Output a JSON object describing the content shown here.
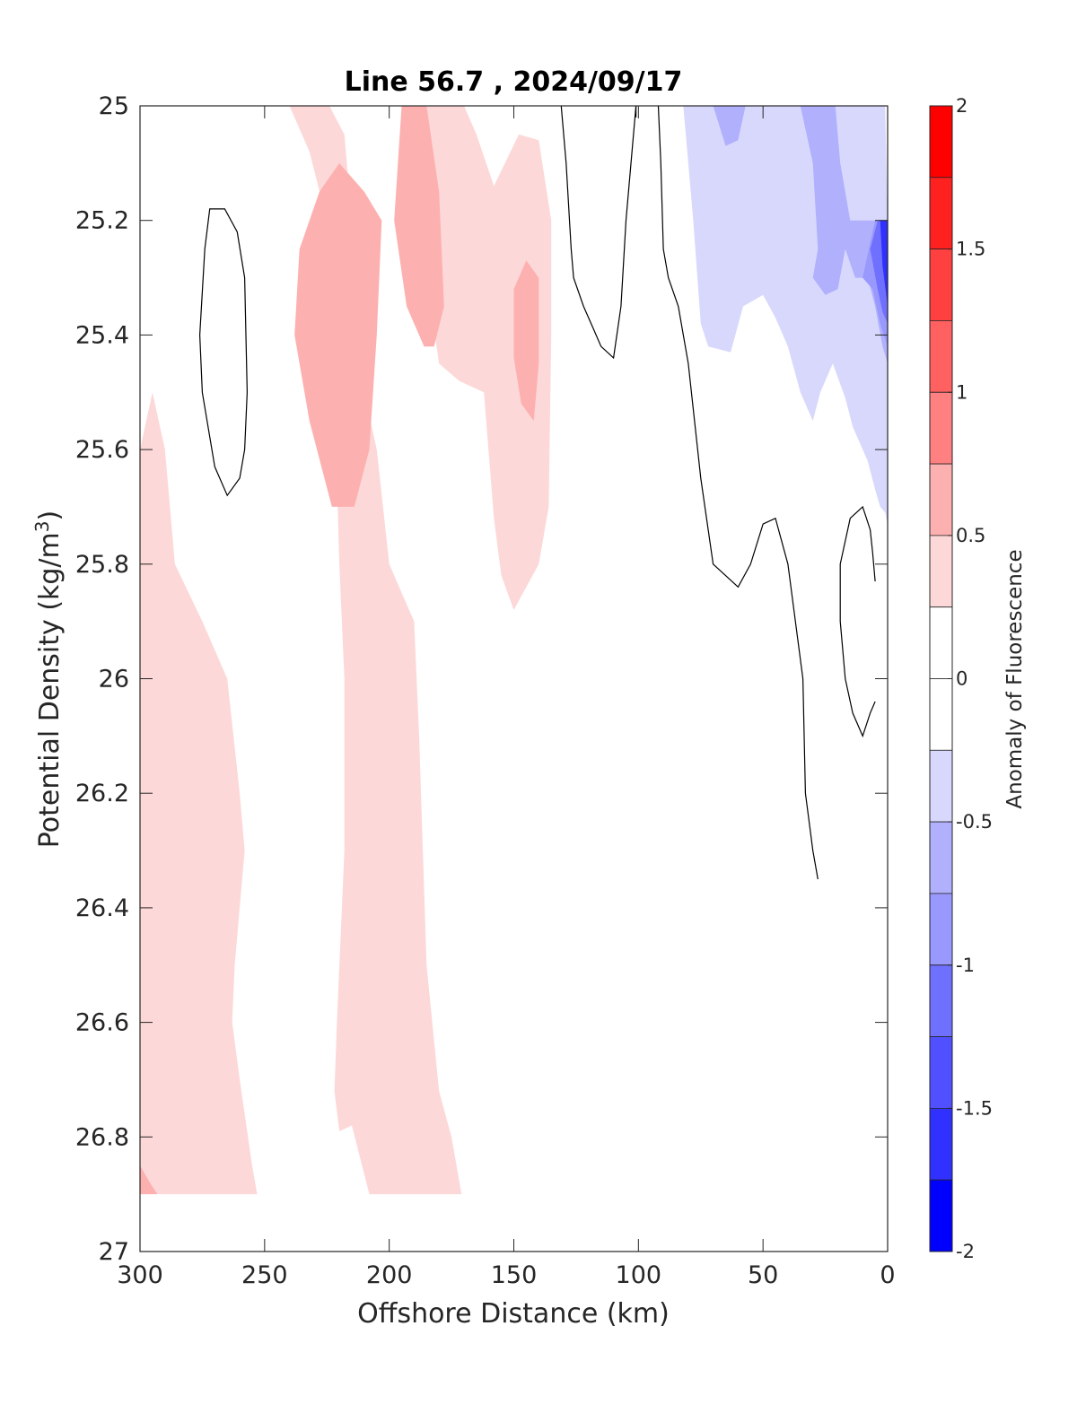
{
  "chart_data": {
    "type": "contour",
    "title": "Line 56.7 , 2024/09/17",
    "xlabel": "Offshore Distance (km)",
    "ylabel_main": "Potential Density (kg/m",
    "ylabel_sup": "3",
    "ylabel_close": ")",
    "colorbar_label": "Anomaly of Fluorescence",
    "x_axis": {
      "min": 0,
      "max": 300,
      "reversed": true,
      "ticks": [
        300,
        250,
        200,
        150,
        100,
        50,
        0
      ],
      "tick_labels": [
        "300",
        "250",
        "200",
        "150",
        "100",
        "50",
        "0"
      ]
    },
    "y_axis": {
      "min": 25,
      "max": 27,
      "reversed": true,
      "ticks": [
        25,
        25.2,
        25.4,
        25.6,
        25.8,
        26,
        26.2,
        26.4,
        26.6,
        26.8,
        27
      ],
      "tick_labels": [
        "25",
        "25.2",
        "25.4",
        "25.6",
        "25.8",
        "26",
        "26.2",
        "26.4",
        "26.6",
        "26.8",
        "27"
      ]
    },
    "colorbar": {
      "min": -2,
      "max": 2,
      "ticks": [
        2,
        1.5,
        1,
        0.5,
        0,
        -0.5,
        -1,
        -1.5,
        -2
      ],
      "tick_labels": [
        "2",
        "1.5",
        "1",
        "0.5",
        "0",
        "-0.5",
        "-1",
        "-1.5",
        "-2"
      ],
      "levels": [
        {
          "from": 1.75,
          "to": 2.0,
          "color": "#ff0000"
        },
        {
          "from": 1.5,
          "to": 1.75,
          "color": "#ff2020"
        },
        {
          "from": 1.25,
          "to": 1.5,
          "color": "#ff4040"
        },
        {
          "from": 1.0,
          "to": 1.25,
          "color": "#ff6060"
        },
        {
          "from": 0.75,
          "to": 1.0,
          "color": "#ff8080"
        },
        {
          "from": 0.5,
          "to": 0.75,
          "color": "#fdb0b0"
        },
        {
          "from": 0.25,
          "to": 0.5,
          "color": "#fdd8d8"
        },
        {
          "from": 0.0,
          "to": 0.25,
          "color": "#ffffff"
        },
        {
          "from": -0.25,
          "to": 0.0,
          "color": "#ffffff"
        },
        {
          "from": -0.5,
          "to": -0.25,
          "color": "#d8d8fd"
        },
        {
          "from": -0.75,
          "to": -0.5,
          "color": "#b0b0fd"
        },
        {
          "from": -1.0,
          "to": -0.75,
          "color": "#9898fd"
        },
        {
          "from": -1.25,
          "to": -1.0,
          "color": "#7070ff"
        },
        {
          "from": -1.5,
          "to": -1.25,
          "color": "#5050ff"
        },
        {
          "from": -1.75,
          "to": -1.5,
          "color": "#3030ff"
        },
        {
          "from": -2.0,
          "to": -1.75,
          "color": "#0000ff"
        }
      ]
    },
    "filled_regions": [
      {
        "level": 0.25,
        "color": "#fdd8d8",
        "name": "left-band",
        "points": [
          [
            300,
            26.9
          ],
          [
            300,
            25.6
          ],
          [
            295,
            25.5
          ],
          [
            290,
            25.6
          ],
          [
            286,
            25.8
          ],
          [
            275,
            25.9
          ],
          [
            265,
            26.0
          ],
          [
            260,
            26.2
          ],
          [
            258,
            26.3
          ],
          [
            262,
            26.5
          ],
          [
            263,
            26.6
          ],
          [
            260,
            26.7
          ],
          [
            255,
            26.85
          ],
          [
            253,
            26.9
          ]
        ]
      },
      {
        "level": 0.25,
        "color": "#fdd8d8",
        "name": "central-band",
        "points": [
          [
            250,
            25.0
          ],
          [
            240,
            25.0
          ],
          [
            232,
            25.08
          ],
          [
            225,
            25.2
          ],
          [
            222,
            25.5
          ],
          [
            220,
            25.8
          ],
          [
            218,
            26.0
          ],
          [
            218,
            26.3
          ],
          [
            221,
            26.6
          ],
          [
            222,
            26.72
          ],
          [
            220,
            26.79
          ],
          [
            215,
            26.78
          ],
          [
            208,
            26.9
          ],
          [
            171,
            26.9
          ],
          [
            175,
            26.8
          ],
          [
            180,
            26.72
          ],
          [
            185,
            26.5
          ],
          [
            188,
            26.1
          ],
          [
            190,
            25.9
          ],
          [
            195,
            25.85
          ],
          [
            200,
            25.8
          ],
          [
            205,
            25.6
          ],
          [
            210,
            25.5
          ],
          [
            213,
            25.3
          ],
          [
            218,
            25.05
          ],
          [
            224,
            25.0
          ]
        ]
      },
      {
        "level": 0.25,
        "color": "#fdd8d8",
        "name": "top-center",
        "points": [
          [
            190,
            25.0
          ],
          [
            170,
            25.0
          ],
          [
            165,
            25.05
          ],
          [
            158,
            25.14
          ],
          [
            148,
            25.05
          ],
          [
            140,
            25.06
          ],
          [
            135,
            25.2
          ],
          [
            135,
            25.4
          ],
          [
            136,
            25.7
          ],
          [
            140,
            25.8
          ],
          [
            150,
            25.88
          ],
          [
            155,
            25.82
          ],
          [
            158,
            25.72
          ],
          [
            162,
            25.5
          ],
          [
            172,
            25.48
          ],
          [
            180,
            25.45
          ],
          [
            185,
            25.3
          ],
          [
            188,
            25.1
          ]
        ]
      },
      {
        "level": 0.5,
        "color": "#fdb0b0",
        "name": "core-a",
        "points": [
          [
            220,
            25.1
          ],
          [
            210,
            25.15
          ],
          [
            203,
            25.2
          ],
          [
            205,
            25.4
          ],
          [
            208,
            25.6
          ],
          [
            214,
            25.7
          ],
          [
            223,
            25.7
          ],
          [
            232,
            25.55
          ],
          [
            238,
            25.4
          ],
          [
            236,
            25.25
          ],
          [
            228,
            25.15
          ]
        ]
      },
      {
        "level": 0.5,
        "color": "#fdb0b0",
        "name": "core-b",
        "points": [
          [
            195,
            25.0
          ],
          [
            185,
            25.0
          ],
          [
            180,
            25.15
          ],
          [
            178,
            25.35
          ],
          [
            182,
            25.42
          ],
          [
            186,
            25.42
          ],
          [
            193,
            25.35
          ],
          [
            198,
            25.2
          ]
        ]
      },
      {
        "level": 0.5,
        "color": "#fdb0b0",
        "name": "core-c",
        "points": [
          [
            145,
            25.27
          ],
          [
            140,
            25.3
          ],
          [
            140,
            25.45
          ],
          [
            142,
            25.55
          ],
          [
            147,
            25.52
          ],
          [
            150,
            25.44
          ],
          [
            150,
            25.32
          ]
        ]
      },
      {
        "level": 0.5,
        "color": "#fdb0b0",
        "name": "bottom-left",
        "points": [
          [
            300,
            26.85
          ],
          [
            296,
            26.88
          ],
          [
            293,
            26.9
          ],
          [
            300,
            26.9
          ]
        ]
      },
      {
        "level": -0.25,
        "color": "#d8d8fd",
        "name": "blue-main",
        "points": [
          [
            82,
            25.0
          ],
          [
            80,
            25.1
          ],
          [
            78,
            25.2
          ],
          [
            75,
            25.38
          ],
          [
            72,
            25.42
          ],
          [
            63,
            25.43
          ],
          [
            58,
            25.35
          ],
          [
            50,
            25.33
          ],
          [
            45,
            25.37
          ],
          [
            40,
            25.42
          ],
          [
            35,
            25.5
          ],
          [
            30,
            25.55
          ],
          [
            27,
            25.5
          ],
          [
            22,
            25.45
          ],
          [
            17,
            25.51
          ],
          [
            14,
            25.56
          ],
          [
            8,
            25.62
          ],
          [
            5,
            25.67
          ],
          [
            3,
            25.7
          ],
          [
            1,
            25.71
          ],
          [
            0,
            25.73
          ],
          [
            0,
            25.2
          ],
          [
            1,
            25.0
          ]
        ]
      },
      {
        "level": -0.5,
        "color": "#b0b0fd",
        "name": "blue-top",
        "points": [
          [
            70,
            25.0
          ],
          [
            65,
            25.07
          ],
          [
            60,
            25.06
          ],
          [
            57,
            25.0
          ]
        ]
      },
      {
        "level": -0.5,
        "color": "#b0b0fd",
        "name": "blue-right",
        "points": [
          [
            35,
            25.0
          ],
          [
            30,
            25.1
          ],
          [
            28,
            25.25
          ],
          [
            30,
            25.3
          ],
          [
            25,
            25.33
          ],
          [
            20,
            25.32
          ],
          [
            17,
            25.25
          ],
          [
            13,
            25.3
          ],
          [
            8,
            25.3
          ],
          [
            5,
            25.35
          ],
          [
            2,
            25.42
          ],
          [
            0,
            25.45
          ],
          [
            0,
            25.2
          ],
          [
            8,
            25.2
          ],
          [
            15,
            25.2
          ],
          [
            19,
            25.1
          ],
          [
            21,
            25.0
          ]
        ]
      },
      {
        "level": -0.75,
        "color": "#9898fd",
        "name": "blue-edge-1",
        "points": [
          [
            10,
            25.3
          ],
          [
            6,
            25.32
          ],
          [
            3,
            25.38
          ],
          [
            0,
            25.42
          ],
          [
            0,
            25.2
          ],
          [
            5,
            25.2
          ]
        ]
      },
      {
        "level": -1.0,
        "color": "#7070ff",
        "name": "blue-edge-2",
        "points": [
          [
            7,
            25.25
          ],
          [
            4,
            25.32
          ],
          [
            2,
            25.36
          ],
          [
            0,
            25.38
          ],
          [
            0,
            25.2
          ],
          [
            4,
            25.2
          ]
        ]
      },
      {
        "level": -1.5,
        "color": "#3030ff",
        "name": "blue-edge-3",
        "points": [
          [
            3,
            25.2
          ],
          [
            2,
            25.28
          ],
          [
            0,
            25.35
          ],
          [
            0,
            25.2
          ]
        ]
      }
    ],
    "contour_lines": [
      {
        "level": 0,
        "name": "ring",
        "closed": true,
        "points": [
          [
            272,
            25.18
          ],
          [
            266,
            25.18
          ],
          [
            261,
            25.22
          ],
          [
            258,
            25.3
          ],
          [
            257,
            25.5
          ],
          [
            258,
            25.6
          ],
          [
            260,
            25.65
          ],
          [
            265,
            25.68
          ],
          [
            270,
            25.63
          ],
          [
            275,
            25.5
          ],
          [
            276,
            25.4
          ],
          [
            274,
            25.25
          ]
        ]
      },
      {
        "level": 0,
        "name": "mid",
        "closed": false,
        "points": [
          [
            131,
            25.0
          ],
          [
            129,
            25.1
          ],
          [
            127,
            25.25
          ],
          [
            126,
            25.3
          ],
          [
            122,
            25.35
          ],
          [
            118,
            25.39
          ],
          [
            115,
            25.42
          ],
          [
            110,
            25.44
          ],
          [
            107,
            25.35
          ],
          [
            105,
            25.2
          ],
          [
            101,
            25.0
          ]
        ]
      },
      {
        "level": 0,
        "name": "tick",
        "closed": false,
        "points": [
          [
            101,
            25.0
          ],
          [
            101,
            25.02
          ]
        ]
      },
      {
        "level": 0,
        "name": "right",
        "closed": false,
        "points": [
          [
            92,
            25.0
          ],
          [
            91,
            25.1
          ],
          [
            90,
            25.25
          ],
          [
            88,
            25.3
          ],
          [
            84,
            25.35
          ],
          [
            80,
            25.45
          ],
          [
            75,
            25.65
          ],
          [
            70,
            25.8
          ],
          [
            65,
            25.82
          ],
          [
            60,
            25.84
          ],
          [
            55,
            25.8
          ],
          [
            50,
            25.73
          ],
          [
            45,
            25.72
          ],
          [
            40,
            25.8
          ],
          [
            34,
            26.0
          ],
          [
            33,
            26.2
          ],
          [
            30,
            26.3
          ],
          [
            28,
            26.35
          ]
        ]
      },
      {
        "level": 0,
        "name": "right-small",
        "closed": false,
        "points": [
          [
            5,
            25.83
          ],
          [
            6,
            25.78
          ],
          [
            7,
            25.74
          ],
          [
            10,
            25.7
          ],
          [
            15,
            25.72
          ],
          [
            19,
            25.8
          ],
          [
            19,
            25.9
          ],
          [
            17,
            26.0
          ],
          [
            14,
            26.06
          ],
          [
            10,
            26.1
          ],
          [
            7,
            26.06
          ],
          [
            5,
            26.04
          ]
        ]
      }
    ]
  }
}
